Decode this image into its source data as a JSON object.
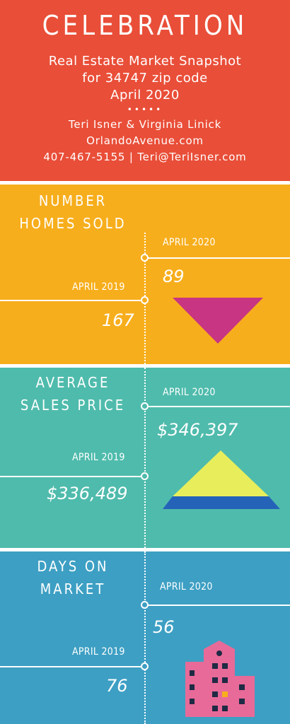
{
  "header": {
    "title": "CELEBRATION",
    "subtitle_1": "Real Estate Market Snapshot",
    "subtitle_2": "for 34747 zip code",
    "subtitle_3": "April 2020",
    "dots": "•••••",
    "authors": "Teri Isner & Virginia Linick",
    "website": "OrlandoAvenue.com",
    "contact": "407-467-5155 | Teri@TeriIsner.com"
  },
  "colors": {
    "header_bg": "#e94e38",
    "homes_sold_bg": "#f7ae1c",
    "sales_price_bg": "#4fbbac",
    "days_on_market_bg": "#3d9fc3",
    "down_triangle": "#c83582",
    "pyramid_top": "#e8ee5b",
    "pyramid_base": "#2563b9",
    "building": "#e86a98"
  },
  "homes_sold": {
    "heading_1": "NUMBER",
    "heading_2": "HOMES SOLD",
    "current_label": "APRIL 2020",
    "current_value": "89",
    "previous_label": "APRIL 2019",
    "previous_value": "167",
    "icon": "down-triangle-icon"
  },
  "sales_price": {
    "heading_1": "AVERAGE",
    "heading_2": "SALES PRICE",
    "current_label": "APRIL 2020",
    "current_value": "$346,397",
    "previous_label": "APRIL 2019",
    "previous_value": "$336,489",
    "icon": "pyramid-icon"
  },
  "days_on_market": {
    "heading_1": "DAYS ON",
    "heading_2": "MARKET",
    "current_label": "APRIL 2020",
    "current_value": "56",
    "previous_label": "APRIL 2019",
    "previous_value": "76",
    "icon": "building-icon"
  }
}
